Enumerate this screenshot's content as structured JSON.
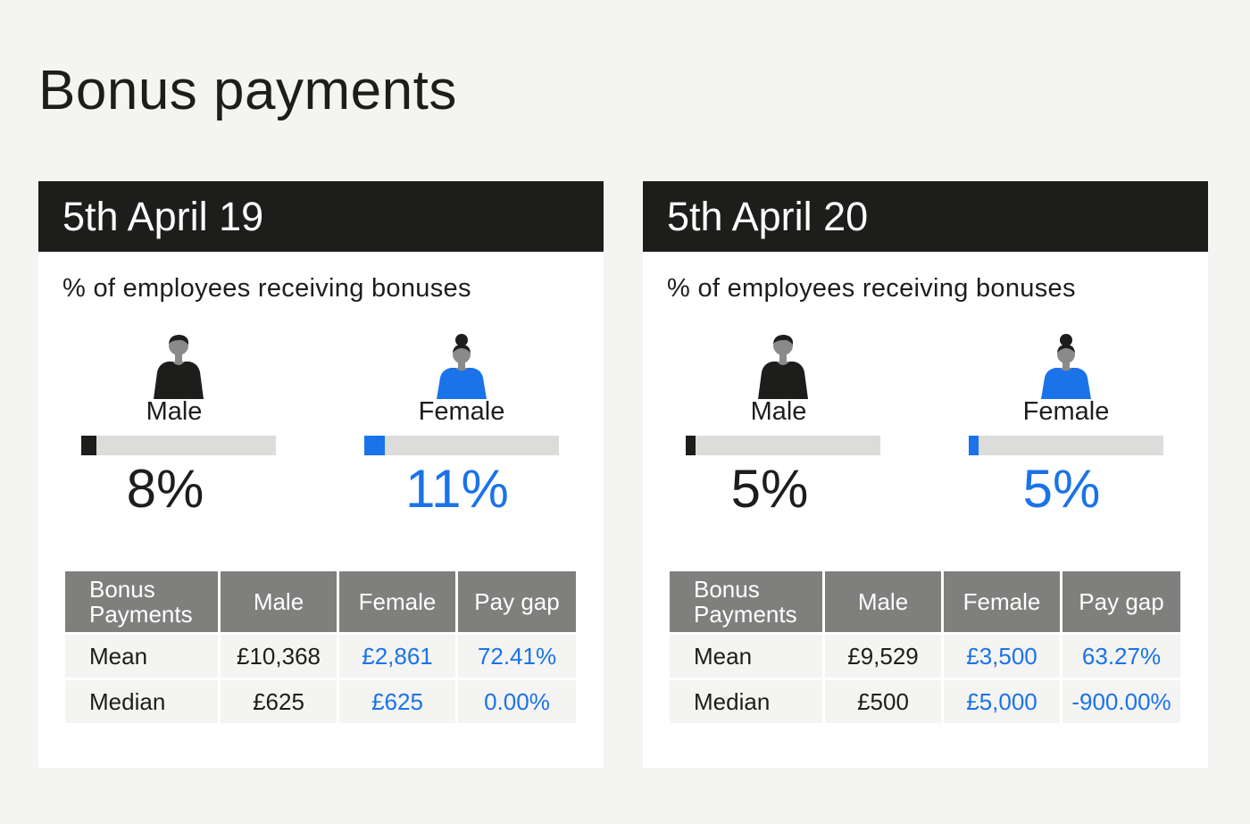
{
  "title": "Bonus payments",
  "colors": {
    "male_accent": "#1d1d1b",
    "female_accent": "#1a73e8",
    "header_bg": "#1d1d1b",
    "table_header_bg": "#7f7f7d"
  },
  "panels": [
    {
      "date": "5th April 19",
      "subtitle": "% of employees receiving bonuses",
      "male": {
        "label": "Male",
        "value": "8%",
        "percent": 8,
        "icon": "male-person-icon"
      },
      "female": {
        "label": "Female",
        "value": "11%",
        "percent": 11,
        "icon": "female-person-icon"
      },
      "table": {
        "headers": [
          "Bonus Payments",
          "Male",
          "Female",
          "Pay gap"
        ],
        "rows": [
          [
            "Mean",
            "£10,368",
            "£2,861",
            "72.41%"
          ],
          [
            "Median",
            "£625",
            "£625",
            "0.00%"
          ]
        ]
      }
    },
    {
      "date": "5th April 20",
      "subtitle": "% of employees receiving bonuses",
      "male": {
        "label": "Male",
        "value": "5%",
        "percent": 5,
        "icon": "male-person-icon"
      },
      "female": {
        "label": "Female",
        "value": "5%",
        "percent": 5,
        "icon": "female-person-icon"
      },
      "table": {
        "headers": [
          "Bonus Payments",
          "Male",
          "Female",
          "Pay gap"
        ],
        "rows": [
          [
            "Mean",
            "£9,529",
            "£3,500",
            "63.27%"
          ],
          [
            "Median",
            "£500",
            "£5,000",
            "-900.00%"
          ]
        ]
      }
    }
  ]
}
